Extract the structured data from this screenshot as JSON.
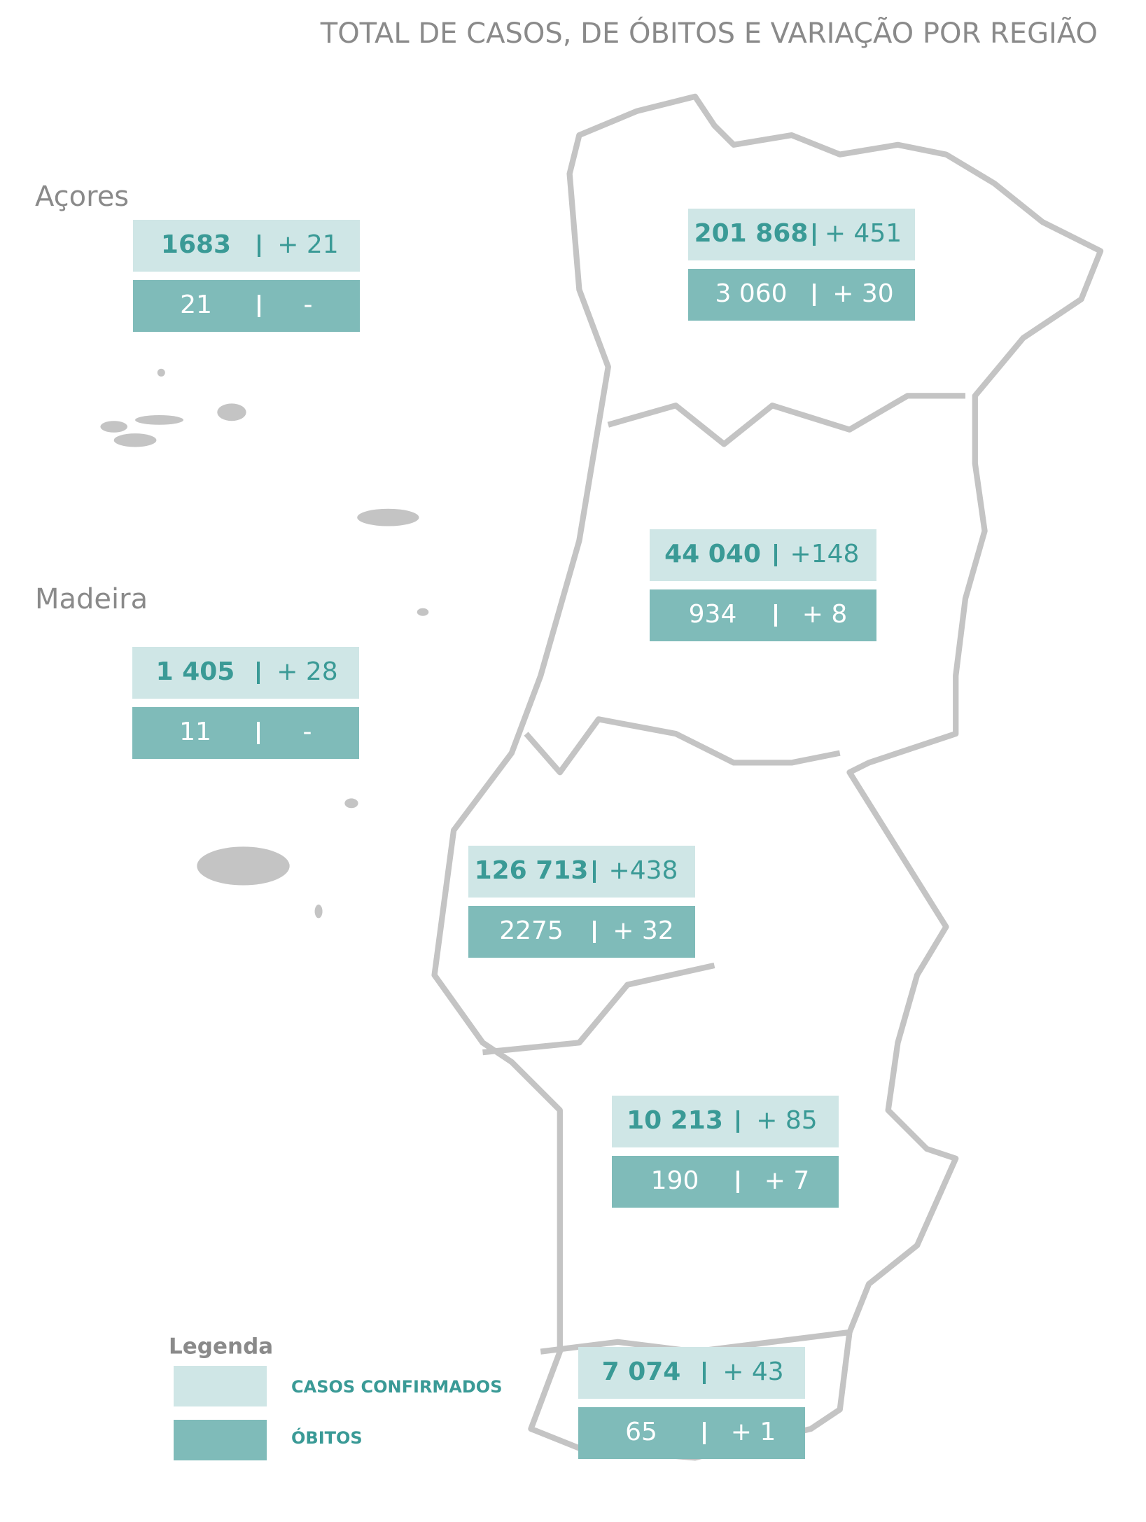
{
  "title": "TOTAL DE CASOS, DE ÓBITOS E VARIAÇÃO POR REGIÃO",
  "regions": [
    {
      "label": "Açores",
      "cases": "1683",
      "cases_change": "+ 21",
      "deaths": "21",
      "deaths_change": "-"
    },
    {
      "cases": "201 868",
      "cases_change": "+ 451",
      "deaths": "3 060",
      "deaths_change": "+ 30"
    },
    {
      "label": "Madeira",
      "cases": "1 405",
      "cases_change": "+ 28",
      "deaths": "11",
      "deaths_change": "-"
    },
    {
      "cases": "44 040",
      "cases_change": "+148",
      "deaths": "934",
      "deaths_change": "+ 8"
    },
    {
      "cases": "126 713",
      "cases_change": "+438",
      "deaths": "2275",
      "deaths_change": "+ 32"
    },
    {
      "cases": "10 213",
      "cases_change": "+ 85",
      "deaths": "190",
      "deaths_change": "+ 7"
    },
    {
      "cases": "7 074",
      "cases_change": "+ 43",
      "deaths": "65",
      "deaths_change": "+ 1"
    }
  ],
  "legend": {
    "title": "Legenda",
    "items": [
      "CASOS CONFIRMADOS",
      "ÓBITOS"
    ]
  }
}
